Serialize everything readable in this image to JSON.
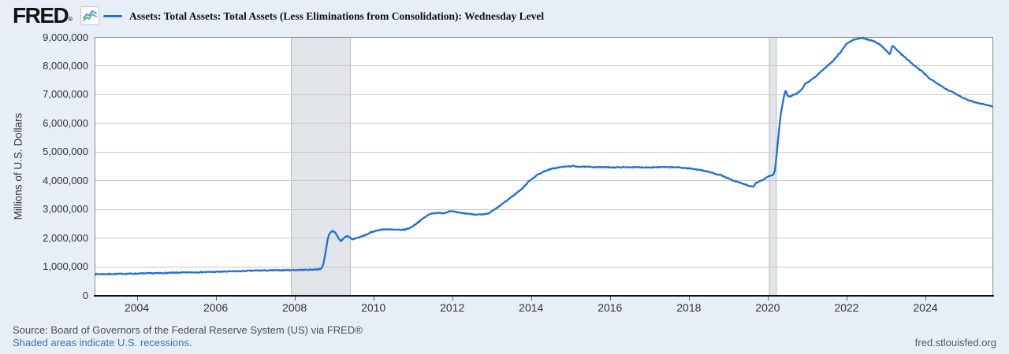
{
  "header": {
    "logo": "FRED",
    "registered_mark": "®",
    "legend_label": "Assets: Total Assets: Total Assets (Less Eliminations from Consolidation): Wednesday Level"
  },
  "footer": {
    "source_line": "Source: Board of Governors of the Federal Reserve System (US) via FRED®",
    "shaded_note": "Shaded areas indicate U.S. recessions.",
    "site": "fred.stlouisfed.org"
  },
  "colors": {
    "page_background": "#e7eef6",
    "plot_background": "#ffffff",
    "series_line": "#1e6fdb",
    "gridline": "#c9c9c9",
    "plot_border": "#8c8c8c",
    "axis_line": "#111111",
    "recession_fill": "#e2e6ea",
    "recession_edge": "#b9bdc1",
    "tick": "#666666",
    "link_blue": "#3d72b4"
  },
  "chart_data": {
    "type": "line",
    "title": "Assets: Total Assets: Total Assets (Less Eliminations from Consolidation): Wednesday Level",
    "xlabel": "",
    "ylabel": "Millions of U.S. Dollars",
    "grid": true,
    "legend_position": "top",
    "xlim": [
      2002.93,
      2025.72
    ],
    "ylim": [
      0,
      9000000
    ],
    "x_tick_years": [
      2004,
      2006,
      2008,
      2010,
      2012,
      2014,
      2016,
      2018,
      2020,
      2022,
      2024
    ],
    "y_tick_values": [
      0,
      1000000,
      2000000,
      3000000,
      4000000,
      5000000,
      6000000,
      7000000,
      8000000,
      9000000
    ],
    "y_tick_labels": [
      "0",
      "1,000,000",
      "2,000,000",
      "3,000,000",
      "4,000,000",
      "5,000,000",
      "6,000,000",
      "7,000,000",
      "8,000,000",
      "9,000,000"
    ],
    "recessions": [
      {
        "start": 2007.92,
        "end": 2009.42
      },
      {
        "start": 2020.04,
        "end": 2020.22
      }
    ],
    "series": [
      {
        "name": "Assets: Total Assets: Total Assets (Less Eliminations from Consolidation): Wednesday Level",
        "color": "#1e6fdb",
        "points": [
          [
            2002.93,
            725000
          ],
          [
            2003.2,
            728000
          ],
          [
            2003.5,
            735000
          ],
          [
            2003.8,
            742000
          ],
          [
            2004.1,
            750000
          ],
          [
            2004.4,
            758000
          ],
          [
            2004.7,
            768000
          ],
          [
            2005.0,
            778000
          ],
          [
            2005.4,
            790000
          ],
          [
            2005.8,
            801000
          ],
          [
            2006.2,
            815000
          ],
          [
            2006.6,
            829000
          ],
          [
            2007.0,
            852000
          ],
          [
            2007.4,
            858000
          ],
          [
            2007.8,
            866000
          ],
          [
            2008.1,
            872000
          ],
          [
            2008.4,
            882000
          ],
          [
            2008.62,
            898000
          ],
          [
            2008.7,
            945000
          ],
          [
            2008.74,
            1130000
          ],
          [
            2008.79,
            1510000
          ],
          [
            2008.84,
            1940000
          ],
          [
            2008.89,
            2150000
          ],
          [
            2008.96,
            2240000
          ],
          [
            2009.03,
            2190000
          ],
          [
            2009.09,
            2040000
          ],
          [
            2009.14,
            1920000
          ],
          [
            2009.18,
            1870000
          ],
          [
            2009.26,
            2000000
          ],
          [
            2009.33,
            2065000
          ],
          [
            2009.41,
            2000000
          ],
          [
            2009.47,
            1935000
          ],
          [
            2009.56,
            1985000
          ],
          [
            2009.66,
            2020000
          ],
          [
            2009.76,
            2070000
          ],
          [
            2009.86,
            2130000
          ],
          [
            2009.96,
            2200000
          ],
          [
            2010.12,
            2260000
          ],
          [
            2010.3,
            2295000
          ],
          [
            2010.5,
            2278000
          ],
          [
            2010.66,
            2268000
          ],
          [
            2010.82,
            2285000
          ],
          [
            2010.96,
            2360000
          ],
          [
            2011.12,
            2520000
          ],
          [
            2011.3,
            2710000
          ],
          [
            2011.46,
            2845000
          ],
          [
            2011.62,
            2862000
          ],
          [
            2011.8,
            2855000
          ],
          [
            2011.94,
            2932000
          ],
          [
            2012.03,
            2912000
          ],
          [
            2012.16,
            2868000
          ],
          [
            2012.36,
            2843000
          ],
          [
            2012.56,
            2812000
          ],
          [
            2012.76,
            2800000
          ],
          [
            2012.9,
            2832000
          ],
          [
            2013.02,
            2930000
          ],
          [
            2013.18,
            3080000
          ],
          [
            2013.38,
            3290000
          ],
          [
            2013.58,
            3500000
          ],
          [
            2013.78,
            3720000
          ],
          [
            2013.97,
            4000000
          ],
          [
            2014.16,
            4190000
          ],
          [
            2014.36,
            4330000
          ],
          [
            2014.56,
            4415000
          ],
          [
            2014.78,
            4465000
          ],
          [
            2015.02,
            4495000
          ],
          [
            2015.32,
            4472000
          ],
          [
            2015.72,
            4462000
          ],
          [
            2016.12,
            4452000
          ],
          [
            2016.52,
            4458000
          ],
          [
            2016.92,
            4452000
          ],
          [
            2017.32,
            4462000
          ],
          [
            2017.72,
            4452000
          ],
          [
            2017.96,
            4422000
          ],
          [
            2018.22,
            4382000
          ],
          [
            2018.52,
            4288000
          ],
          [
            2018.82,
            4178000
          ],
          [
            2019.12,
            3988000
          ],
          [
            2019.36,
            3888000
          ],
          [
            2019.56,
            3795000
          ],
          [
            2019.64,
            3762000
          ],
          [
            2019.7,
            3902000
          ],
          [
            2019.77,
            3948000
          ],
          [
            2019.85,
            3992000
          ],
          [
            2019.93,
            4062000
          ],
          [
            2020.01,
            4142000
          ],
          [
            2020.09,
            4172000
          ],
          [
            2020.15,
            4205000
          ],
          [
            2020.19,
            4380000
          ],
          [
            2020.23,
            4950000
          ],
          [
            2020.28,
            5650000
          ],
          [
            2020.33,
            6300000
          ],
          [
            2020.38,
            6680000
          ],
          [
            2020.43,
            7030000
          ],
          [
            2020.46,
            7140000
          ],
          [
            2020.5,
            6955000
          ],
          [
            2020.55,
            6900000
          ],
          [
            2020.63,
            6968000
          ],
          [
            2020.73,
            7025000
          ],
          [
            2020.83,
            7125000
          ],
          [
            2020.89,
            7210000
          ],
          [
            2020.94,
            7355000
          ],
          [
            2021.06,
            7455000
          ],
          [
            2021.22,
            7630000
          ],
          [
            2021.42,
            7880000
          ],
          [
            2021.62,
            8110000
          ],
          [
            2021.82,
            8420000
          ],
          [
            2022.0,
            8760000
          ],
          [
            2022.16,
            8890000
          ],
          [
            2022.3,
            8950000
          ],
          [
            2022.42,
            8962000
          ],
          [
            2022.56,
            8905000
          ],
          [
            2022.72,
            8845000
          ],
          [
            2022.87,
            8705000
          ],
          [
            2023.0,
            8545000
          ],
          [
            2023.1,
            8390000
          ],
          [
            2023.16,
            8695000
          ],
          [
            2023.23,
            8615000
          ],
          [
            2023.36,
            8435000
          ],
          [
            2023.52,
            8240000
          ],
          [
            2023.72,
            8000000
          ],
          [
            2023.92,
            7790000
          ],
          [
            2024.12,
            7535000
          ],
          [
            2024.32,
            7370000
          ],
          [
            2024.52,
            7185000
          ],
          [
            2024.72,
            7055000
          ],
          [
            2024.92,
            6905000
          ],
          [
            2025.12,
            6785000
          ],
          [
            2025.32,
            6700000
          ],
          [
            2025.52,
            6640000
          ],
          [
            2025.72,
            6570000
          ]
        ]
      }
    ]
  }
}
